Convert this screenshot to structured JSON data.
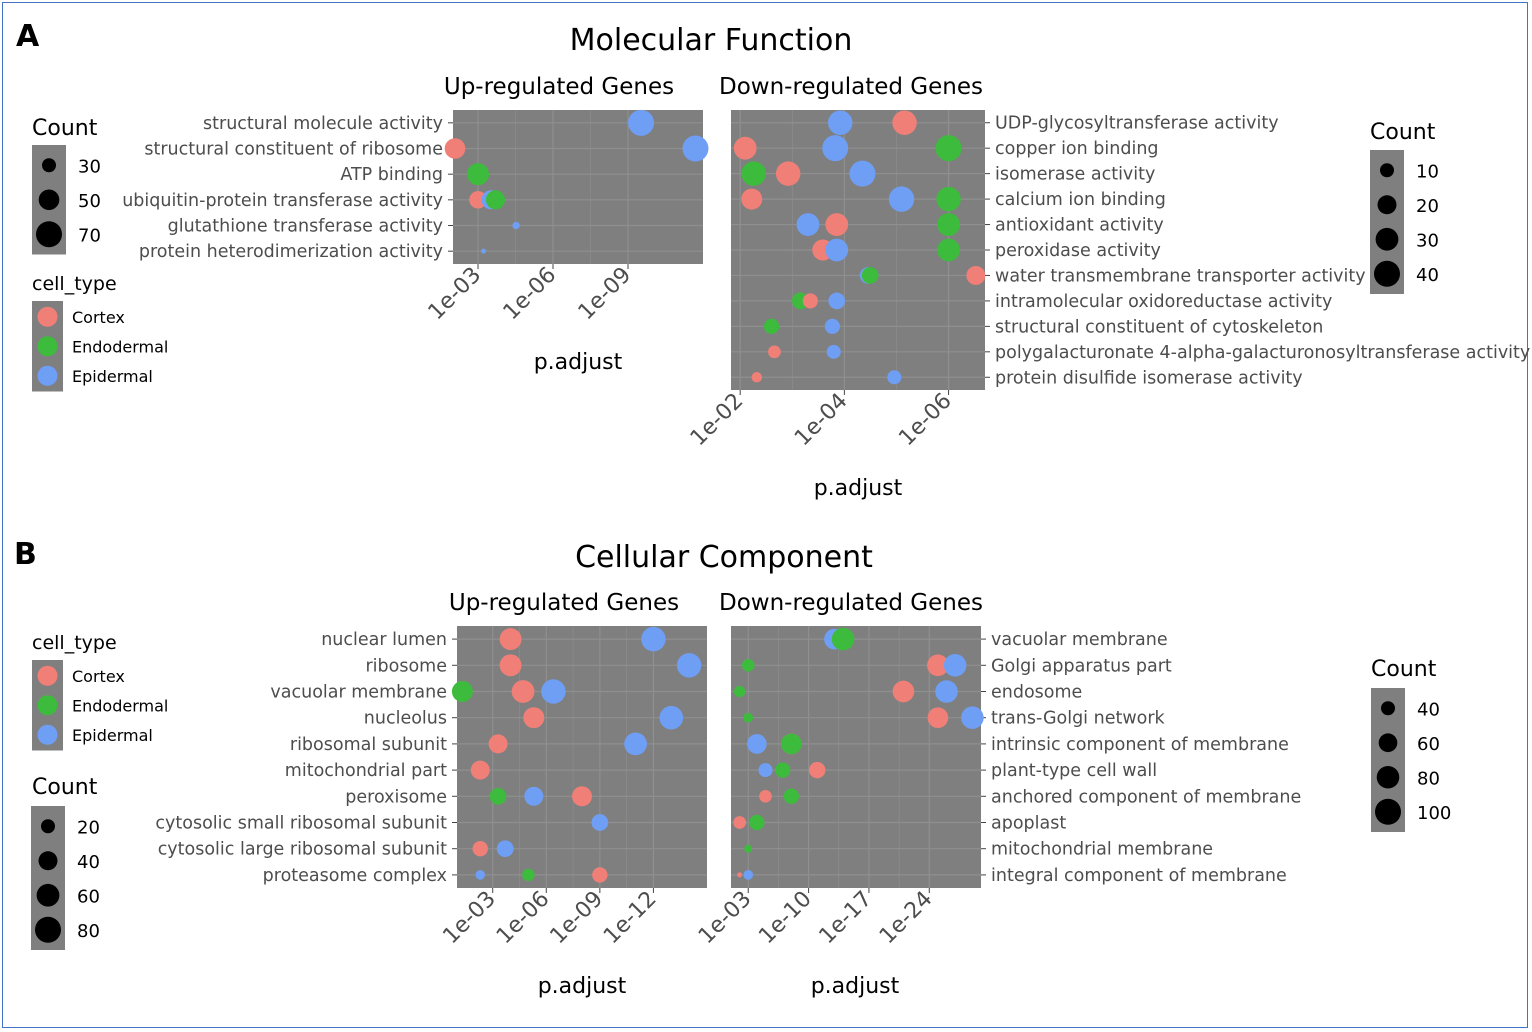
{
  "panels": [
    {
      "letter": "A",
      "title": "Molecular Function",
      "colors": {
        "Cortex": "#f07f78",
        "Endodermal": "#3dbb3d",
        "Epidermal": "#6f9ef5"
      },
      "legends": {
        "count_left": {
          "title": "Count",
          "items": [
            30,
            50,
            70
          ]
        },
        "cell_type": {
          "title": "cell_type",
          "items": [
            "Cortex",
            "Endodermal",
            "Epidermal"
          ]
        },
        "count_right": {
          "title": "Count",
          "items": [
            10,
            20,
            30,
            40
          ]
        }
      },
      "chart_data": [
        {
          "type": "scatter",
          "title": "Up-regulated Genes",
          "xlabel": "p.adjust",
          "x_scale": "log10-reversed",
          "xlim": [
            0.01,
            1e-12
          ],
          "x_ticks": [
            "1e-03",
            "1e-06",
            "1e-09"
          ],
          "x_tick_values": [
            0.001,
            1e-06,
            1e-09
          ],
          "terms": [
            "structural molecule activity",
            "structural constituent of ribosome",
            "ATP binding",
            "ubiquitin-protein transferase activity",
            "glutathione transferase activity",
            "protein heterodimerization activity"
          ],
          "points": [
            {
              "term": "structural molecule activity",
              "cell_type": "Epidermal",
              "p_adjust": 3e-10,
              "count": 70
            },
            {
              "term": "structural constituent of ribosome",
              "cell_type": "Cortex",
              "p_adjust": 0.01,
              "count": 50
            },
            {
              "term": "structural constituent of ribosome",
              "cell_type": "Epidermal",
              "p_adjust": 2e-12,
              "count": 70
            },
            {
              "term": "ATP binding",
              "cell_type": "Endodermal",
              "p_adjust": 0.001,
              "count": 55
            },
            {
              "term": "ubiquitin-protein transferase activity",
              "cell_type": "Cortex",
              "p_adjust": 0.001,
              "count": 40
            },
            {
              "term": "ubiquitin-protein transferase activity",
              "cell_type": "Epidermal",
              "p_adjust": 0.0003,
              "count": 45
            },
            {
              "term": "ubiquitin-protein transferase activity",
              "cell_type": "Endodermal",
              "p_adjust": 0.0002,
              "count": 45
            },
            {
              "term": "glutathione transferase activity",
              "cell_type": "Epidermal",
              "p_adjust": 3e-05,
              "count": 15
            },
            {
              "term": "protein heterodimerization activity",
              "cell_type": "Epidermal",
              "p_adjust": 0.0006,
              "count": 5
            }
          ]
        },
        {
          "type": "scatter",
          "title": "Down-regulated Genes",
          "xlabel": "p.adjust",
          "x_scale": "log10-reversed",
          "xlim": [
            0.015,
            2e-07
          ],
          "x_ticks": [
            "1e-02",
            "1e-04",
            "1e-06"
          ],
          "x_tick_values": [
            0.01,
            0.0001,
            1e-06
          ],
          "terms": [
            "UDP-glycosyltransferase activity",
            "copper ion binding",
            "isomerase activity",
            "calcium ion binding",
            "antioxidant activity",
            "peroxidase activity",
            "water transmembrane transporter activity",
            "intramolecular oxidoreductase activity",
            "structural constituent of cytoskeleton",
            "polygalacturonate 4-alpha-galacturonosyltransferase activity",
            "protein disulfide isomerase activity"
          ],
          "points": [
            {
              "term": "UDP-glycosyltransferase activity",
              "cell_type": "Epidermal",
              "p_adjust": 0.00012,
              "count": 35
            },
            {
              "term": "UDP-glycosyltransferase activity",
              "cell_type": "Cortex",
              "p_adjust": 7e-06,
              "count": 35
            },
            {
              "term": "copper ion binding",
              "cell_type": "Cortex",
              "p_adjust": 0.008,
              "count": 30
            },
            {
              "term": "copper ion binding",
              "cell_type": "Epidermal",
              "p_adjust": 0.00015,
              "count": 40
            },
            {
              "term": "copper ion binding",
              "cell_type": "Endodermal",
              "p_adjust": 1e-06,
              "count": 40
            },
            {
              "term": "isomerase activity",
              "cell_type": "Endodermal",
              "p_adjust": 0.0055,
              "count": 35
            },
            {
              "term": "isomerase activity",
              "cell_type": "Cortex",
              "p_adjust": 0.0012,
              "count": 35
            },
            {
              "term": "isomerase activity",
              "cell_type": "Epidermal",
              "p_adjust": 4.5e-05,
              "count": 40
            },
            {
              "term": "calcium ion binding",
              "cell_type": "Cortex",
              "p_adjust": 0.006,
              "count": 25
            },
            {
              "term": "calcium ion binding",
              "cell_type": "Epidermal",
              "p_adjust": 8e-06,
              "count": 38
            },
            {
              "term": "calcium ion binding",
              "cell_type": "Endodermal",
              "p_adjust": 1e-06,
              "count": 35
            },
            {
              "term": "antioxidant activity",
              "cell_type": "Epidermal",
              "p_adjust": 0.0005,
              "count": 30
            },
            {
              "term": "antioxidant activity",
              "cell_type": "Cortex",
              "p_adjust": 0.00014,
              "count": 30
            },
            {
              "term": "antioxidant activity",
              "cell_type": "Endodermal",
              "p_adjust": 1e-06,
              "count": 30
            },
            {
              "term": "peroxidase activity",
              "cell_type": "Cortex",
              "p_adjust": 0.00026,
              "count": 25
            },
            {
              "term": "peroxidase activity",
              "cell_type": "Epidermal",
              "p_adjust": 0.00014,
              "count": 30
            },
            {
              "term": "peroxidase activity",
              "cell_type": "Endodermal",
              "p_adjust": 1e-06,
              "count": 30
            },
            {
              "term": "water transmembrane transporter activity",
              "cell_type": "Epidermal",
              "p_adjust": 3.5e-05,
              "count": 15
            },
            {
              "term": "water transmembrane transporter activity",
              "cell_type": "Endodermal",
              "p_adjust": 3.2e-05,
              "count": 15
            },
            {
              "term": "water transmembrane transporter activity",
              "cell_type": "Cortex",
              "p_adjust": 3e-07,
              "count": 20
            },
            {
              "term": "intramolecular oxidoreductase activity",
              "cell_type": "Endodermal",
              "p_adjust": 0.0007,
              "count": 15
            },
            {
              "term": "intramolecular oxidoreductase activity",
              "cell_type": "Cortex",
              "p_adjust": 0.00045,
              "count": 12
            },
            {
              "term": "intramolecular oxidoreductase activity",
              "cell_type": "Epidermal",
              "p_adjust": 0.00014,
              "count": 15
            },
            {
              "term": "structural constituent of cytoskeleton",
              "cell_type": "Endodermal",
              "p_adjust": 0.0025,
              "count": 12
            },
            {
              "term": "structural constituent of cytoskeleton",
              "cell_type": "Epidermal",
              "p_adjust": 0.00017,
              "count": 12
            },
            {
              "term": "polygalacturonate 4-alpha-galacturonosyltransferase activity",
              "cell_type": "Cortex",
              "p_adjust": 0.0022,
              "count": 8
            },
            {
              "term": "polygalacturonate 4-alpha-galacturonosyltransferase activity",
              "cell_type": "Epidermal",
              "p_adjust": 0.00016,
              "count": 10
            },
            {
              "term": "protein disulfide isomerase activity",
              "cell_type": "Cortex",
              "p_adjust": 0.0048,
              "count": 5
            },
            {
              "term": "protein disulfide isomerase activity",
              "cell_type": "Epidermal",
              "p_adjust": 1.1e-05,
              "count": 10
            }
          ]
        }
      ]
    },
    {
      "letter": "B",
      "title": "Cellular Component",
      "colors": {
        "Cortex": "#f07f78",
        "Endodermal": "#3dbb3d",
        "Epidermal": "#6f9ef5"
      },
      "legends": {
        "cell_type": {
          "title": "cell_type",
          "items": [
            "Cortex",
            "Endodermal",
            "Epidermal"
          ]
        },
        "count_left": {
          "title": "Count",
          "items": [
            20,
            40,
            60,
            80
          ]
        },
        "count_right": {
          "title": "Count",
          "items": [
            40,
            60,
            80,
            100
          ]
        }
      },
      "chart_data": [
        {
          "type": "scatter",
          "title": "Up-regulated Genes",
          "xlabel": "p.adjust",
          "x_scale": "log10-reversed",
          "xlim": [
            0.1,
            1e-15
          ],
          "x_ticks": [
            "1e-03",
            "1e-06",
            "1e-09",
            "1e-12"
          ],
          "x_tick_values": [
            0.001,
            1e-06,
            1e-09,
            1e-12
          ],
          "terms": [
            "nuclear lumen",
            "ribosome",
            "vacuolar membrane",
            "nucleolus",
            "ribosomal subunit",
            "mitochondrial part",
            "peroxisome",
            "cytosolic small ribosomal subunit",
            "cytosolic large ribosomal subunit",
            "proteasome complex"
          ],
          "points": [
            {
              "term": "nuclear lumen",
              "cell_type": "Cortex",
              "p_adjust": 0.0001,
              "count": 55
            },
            {
              "term": "nuclear lumen",
              "cell_type": "Epidermal",
              "p_adjust": 1e-12,
              "count": 70
            },
            {
              "term": "ribosome",
              "cell_type": "Cortex",
              "p_adjust": 0.0001,
              "count": 55
            },
            {
              "term": "ribosome",
              "cell_type": "Epidermal",
              "p_adjust": 1e-14,
              "count": 70
            },
            {
              "term": "vacuolar membrane",
              "cell_type": "Endodermal",
              "p_adjust": 0.05,
              "count": 50
            },
            {
              "term": "vacuolar membrane",
              "cell_type": "Cortex",
              "p_adjust": 2e-05,
              "count": 60
            },
            {
              "term": "vacuolar membrane",
              "cell_type": "Epidermal",
              "p_adjust": 4e-07,
              "count": 70
            },
            {
              "term": "nucleolus",
              "cell_type": "Cortex",
              "p_adjust": 5e-06,
              "count": 50
            },
            {
              "term": "nucleolus",
              "cell_type": "Epidermal",
              "p_adjust": 1e-13,
              "count": 65
            },
            {
              "term": "ribosomal subunit",
              "cell_type": "Cortex",
              "p_adjust": 0.0005,
              "count": 40
            },
            {
              "term": "ribosomal subunit",
              "cell_type": "Epidermal",
              "p_adjust": 1e-11,
              "count": 60
            },
            {
              "term": "mitochondrial part",
              "cell_type": "Cortex",
              "p_adjust": 0.005,
              "count": 40
            },
            {
              "term": "peroxisome",
              "cell_type": "Endodermal",
              "p_adjust": 0.0005,
              "count": 30
            },
            {
              "term": "peroxisome",
              "cell_type": "Epidermal",
              "p_adjust": 5e-06,
              "count": 40
            },
            {
              "term": "peroxisome",
              "cell_type": "Cortex",
              "p_adjust": 1e-08,
              "count": 45
            },
            {
              "term": "cytosolic small ribosomal subunit",
              "cell_type": "Epidermal",
              "p_adjust": 1e-09,
              "count": 30
            },
            {
              "term": "cytosolic large ribosomal subunit",
              "cell_type": "Cortex",
              "p_adjust": 0.005,
              "count": 25
            },
            {
              "term": "cytosolic large ribosomal subunit",
              "cell_type": "Epidermal",
              "p_adjust": 0.0002,
              "count": 30
            },
            {
              "term": "proteasome complex",
              "cell_type": "Epidermal",
              "p_adjust": 0.005,
              "count": 8
            },
            {
              "term": "proteasome complex",
              "cell_type": "Endodermal",
              "p_adjust": 1e-05,
              "count": 15
            },
            {
              "term": "proteasome complex",
              "cell_type": "Cortex",
              "p_adjust": 1e-09,
              "count": 25
            }
          ]
        },
        {
          "type": "scatter",
          "title": "Down-regulated Genes",
          "xlabel": "p.adjust",
          "x_scale": "log10-reversed",
          "xlim": [
            0.1,
            1e-30
          ],
          "x_ticks": [
            "1e-03",
            "1e-10",
            "1e-17",
            "1e-24"
          ],
          "x_tick_values": [
            0.001,
            1e-10,
            1e-17,
            1e-24
          ],
          "terms": [
            "vacuolar membrane",
            "Golgi apparatus part",
            "endosome",
            "trans-Golgi network",
            "intrinsic component of membrane",
            "plant-type cell wall",
            "anchored component of membrane",
            "apoplast",
            "mitochondrial membrane",
            "integral component of membrane"
          ],
          "points": [
            {
              "term": "vacuolar membrane",
              "cell_type": "Epidermal",
              "p_adjust": 1e-13,
              "count": 70
            },
            {
              "term": "vacuolar membrane",
              "cell_type": "Endodermal",
              "p_adjust": 1e-14,
              "count": 80
            },
            {
              "term": "Golgi apparatus part",
              "cell_type": "Endodermal",
              "p_adjust": 0.001,
              "count": 35
            },
            {
              "term": "Golgi apparatus part",
              "cell_type": "Cortex",
              "p_adjust": 1e-25,
              "count": 75
            },
            {
              "term": "Golgi apparatus part",
              "cell_type": "Epidermal",
              "p_adjust": 1e-27,
              "count": 80
            },
            {
              "term": "endosome",
              "cell_type": "Endodermal",
              "p_adjust": 0.01,
              "count": 30
            },
            {
              "term": "endosome",
              "cell_type": "Cortex",
              "p_adjust": 1e-21,
              "count": 75
            },
            {
              "term": "endosome",
              "cell_type": "Epidermal",
              "p_adjust": 1e-26,
              "count": 80
            },
            {
              "term": "trans-Golgi network",
              "cell_type": "Endodermal",
              "p_adjust": 0.001,
              "count": 25
            },
            {
              "term": "trans-Golgi network",
              "cell_type": "Cortex",
              "p_adjust": 1e-25,
              "count": 70
            },
            {
              "term": "trans-Golgi network",
              "cell_type": "Epidermal",
              "p_adjust": 1e-29,
              "count": 80
            },
            {
              "term": "intrinsic component of membrane",
              "cell_type": "Epidermal",
              "p_adjust": 0.0001,
              "count": 65
            },
            {
              "term": "intrinsic component of membrane",
              "cell_type": "Cortex",
              "p_adjust": 1e-08,
              "count": 70
            },
            {
              "term": "intrinsic component of membrane",
              "cell_type": "Endodermal",
              "p_adjust": 1e-08,
              "count": 70
            },
            {
              "term": "plant-type cell wall",
              "cell_type": "Epidermal",
              "p_adjust": 1e-05,
              "count": 40
            },
            {
              "term": "plant-type cell wall",
              "cell_type": "Endodermal",
              "p_adjust": 1e-07,
              "count": 45
            },
            {
              "term": "plant-type cell wall",
              "cell_type": "Cortex",
              "p_adjust": 1e-11,
              "count": 50
            },
            {
              "term": "anchored component of membrane",
              "cell_type": "Cortex",
              "p_adjust": 1e-05,
              "count": 35
            },
            {
              "term": "anchored component of membrane",
              "cell_type": "Endodermal",
              "p_adjust": 1e-08,
              "count": 45
            },
            {
              "term": "apoplast",
              "cell_type": "Cortex",
              "p_adjust": 0.01,
              "count": 35
            },
            {
              "term": "apoplast",
              "cell_type": "Endodermal",
              "p_adjust": 0.0001,
              "count": 45
            },
            {
              "term": "mitochondrial membrane",
              "cell_type": "Endodermal",
              "p_adjust": 0.001,
              "count": 20
            },
            {
              "term": "integral component of membrane",
              "cell_type": "Cortex",
              "p_adjust": 0.01,
              "count": 10
            },
            {
              "term": "integral component of membrane",
              "cell_type": "Epidermal",
              "p_adjust": 0.001,
              "count": 25
            }
          ]
        }
      ]
    }
  ]
}
